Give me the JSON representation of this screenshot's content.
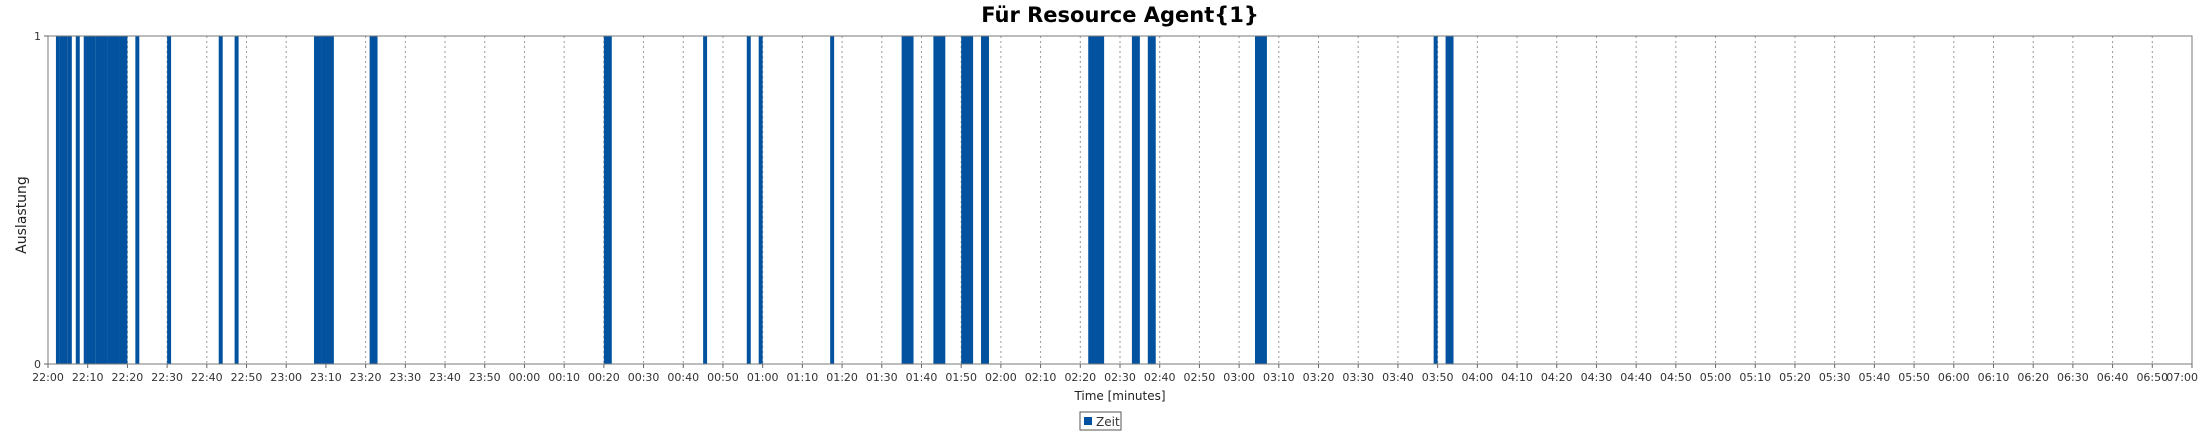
{
  "chart_data": {
    "type": "bar",
    "title": "Für Resource Agent{1}",
    "xlabel": "Time [minutes]",
    "ylabel": "Auslastung",
    "ylim": [
      0,
      1
    ],
    "yticks": [
      "0",
      "1"
    ],
    "x_range": [
      "22:00",
      "07:00"
    ],
    "grid": true,
    "legend_placement": "bottom-center",
    "colors": {
      "bar": "#02529f",
      "grid": "#9a9a9a",
      "plot_border": "#7a7a7a"
    },
    "xticks": [
      "22:00",
      "22:10",
      "22:20",
      "22:30",
      "22:40",
      "22:50",
      "23:00",
      "23:10",
      "23:20",
      "23:30",
      "23:40",
      "23:50",
      "00:00",
      "00:10",
      "00:20",
      "00:30",
      "00:40",
      "00:50",
      "01:00",
      "01:10",
      "01:20",
      "01:30",
      "01:40",
      "01:50",
      "02:00",
      "02:10",
      "02:20",
      "02:30",
      "02:40",
      "02:50",
      "03:00",
      "03:10",
      "03:20",
      "03:30",
      "03:40",
      "03:50",
      "04:00",
      "04:10",
      "04:20",
      "04:30",
      "04:40",
      "04:50",
      "05:00",
      "05:10",
      "05:20",
      "05:30",
      "05:40",
      "05:50",
      "06:00",
      "06:10",
      "06:20",
      "06:30",
      "06:40",
      "06:50",
      "07:00"
    ],
    "series": [
      {
        "name": "Zeit",
        "intervals": [
          {
            "start": "22:02",
            "end": "22:03",
            "value": 1
          },
          {
            "start": "22:03",
            "end": "22:05",
            "value": 1
          },
          {
            "start": "22:05",
            "end": "22:06",
            "value": 1
          },
          {
            "start": "22:07",
            "end": "22:08",
            "value": 1
          },
          {
            "start": "22:09",
            "end": "22:12",
            "value": 1
          },
          {
            "start": "22:12",
            "end": "22:15",
            "value": 1
          },
          {
            "start": "22:15",
            "end": "22:18",
            "value": 1
          },
          {
            "start": "22:18",
            "end": "22:20",
            "value": 1
          },
          {
            "start": "22:22",
            "end": "22:23",
            "value": 1
          },
          {
            "start": "22:30",
            "end": "22:31",
            "value": 1
          },
          {
            "start": "22:43",
            "end": "22:44",
            "value": 1
          },
          {
            "start": "22:47",
            "end": "22:48",
            "value": 1
          },
          {
            "start": "23:07",
            "end": "23:09",
            "value": 1
          },
          {
            "start": "23:09",
            "end": "23:12",
            "value": 1
          },
          {
            "start": "23:21",
            "end": "23:23",
            "value": 1
          },
          {
            "start": "00:20",
            "end": "00:22",
            "value": 1
          },
          {
            "start": "00:45",
            "end": "00:46",
            "value": 1
          },
          {
            "start": "00:56",
            "end": "00:57",
            "value": 1
          },
          {
            "start": "00:59",
            "end": "01:00",
            "value": 1
          },
          {
            "start": "01:17",
            "end": "01:18",
            "value": 1
          },
          {
            "start": "01:35",
            "end": "01:38",
            "value": 1
          },
          {
            "start": "01:43",
            "end": "01:46",
            "value": 1
          },
          {
            "start": "01:50",
            "end": "01:53",
            "value": 1
          },
          {
            "start": "01:55",
            "end": "01:57",
            "value": 1
          },
          {
            "start": "02:22",
            "end": "02:26",
            "value": 1
          },
          {
            "start": "02:33",
            "end": "02:35",
            "value": 1
          },
          {
            "start": "02:37",
            "end": "02:39",
            "value": 1
          },
          {
            "start": "03:04",
            "end": "03:07",
            "value": 1
          },
          {
            "start": "03:49",
            "end": "03:50",
            "value": 1
          },
          {
            "start": "03:52",
            "end": "03:54",
            "value": 1
          }
        ]
      }
    ]
  }
}
